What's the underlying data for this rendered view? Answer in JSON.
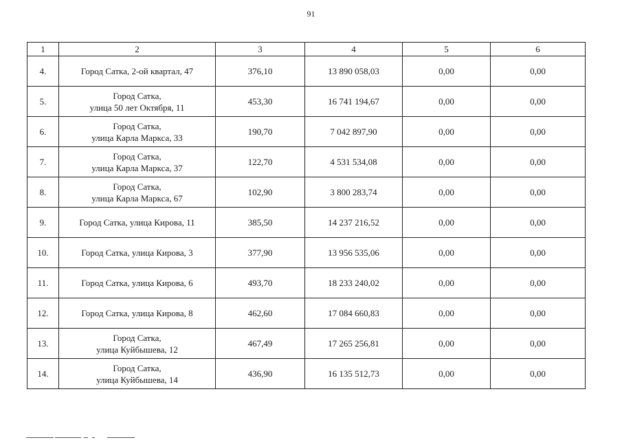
{
  "page_number": "91",
  "table": {
    "headers": [
      "1",
      "2",
      "3",
      "4",
      "5",
      "6"
    ],
    "rows": [
      {
        "num": "4.",
        "address": [
          "Город Сатка, 2-ой квартал, 47"
        ],
        "col3": "376,10",
        "col4": "13 890 058,03",
        "col5": "0,00",
        "col6": "0,00"
      },
      {
        "num": "5.",
        "address": [
          "Город Сатка,",
          "улица 50 лет Октября, 11"
        ],
        "col3": "453,30",
        "col4": "16 741 194,67",
        "col5": "0,00",
        "col6": "0,00"
      },
      {
        "num": "6.",
        "address": [
          "Город Сатка,",
          "улица Карла Маркса, 33"
        ],
        "col3": "190,70",
        "col4": "7 042 897,90",
        "col5": "0,00",
        "col6": "0,00"
      },
      {
        "num": "7.",
        "address": [
          "Город Сатка,",
          "улица Карла Маркса, 37"
        ],
        "col3": "122,70",
        "col4": "4 531 534,08",
        "col5": "0,00",
        "col6": "0,00"
      },
      {
        "num": "8.",
        "address": [
          "Город Сатка,",
          "улица  Карла Маркса, 67"
        ],
        "col3": "102,90",
        "col4": "3 800 283,74",
        "col5": "0,00",
        "col6": "0,00"
      },
      {
        "num": "9.",
        "address": [
          "Город Сатка, улица Кирова, 11"
        ],
        "col3": "385,50",
        "col4": "14 237 216,52",
        "col5": "0,00",
        "col6": "0,00"
      },
      {
        "num": "10.",
        "address": [
          "Город Сатка, улица Кирова, 3"
        ],
        "col3": "377,90",
        "col4": "13 956 535,06",
        "col5": "0,00",
        "col6": "0,00"
      },
      {
        "num": "11.",
        "address": [
          "Город Сатка, улица Кирова, 6"
        ],
        "col3": "493,70",
        "col4": "18 233 240,02",
        "col5": "0,00",
        "col6": "0,00"
      },
      {
        "num": "12.",
        "address": [
          "Город Сатка, улица Кирова, 8"
        ],
        "col3": "462,60",
        "col4": "17 084 660,83",
        "col5": "0,00",
        "col6": "0,00"
      },
      {
        "num": "13.",
        "address": [
          "Город Сатка,",
          "улица Куйбышева, 12"
        ],
        "col3": "467,49",
        "col4": "17 265 256,81",
        "col5": "0,00",
        "col6": "0,00"
      },
      {
        "num": "14.",
        "address": [
          "Город Сатка,",
          "улица Куйбышева, 14"
        ],
        "col3": "436,90",
        "col4": "16 135 512,73",
        "col5": "0,00",
        "col6": "0,00"
      }
    ]
  }
}
